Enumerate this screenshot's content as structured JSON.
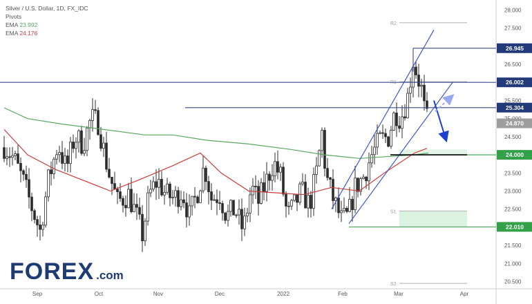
{
  "legend": {
    "symbol": "Silver / U.S. Dollar, 1D, FX_IDC",
    "pivots": "Pivots",
    "ema_fast_label": "EMA",
    "ema_fast_value": "23.992",
    "ema_slow_label": "EMA",
    "ema_slow_value": "24.176"
  },
  "logo": {
    "text": "FOREX",
    "suffix": ".com"
  },
  "colors": {
    "ema_fast": "#5aa860",
    "ema_slow": "#cc3a3a",
    "candle": "#2b2b2b",
    "channel": "#2f4cc9",
    "level": "#3a4a8a",
    "support": "#33a04a",
    "pivot_line": "#b0b0b0",
    "zone": "#d6f0dc",
    "arrow_solid": "#1f3fd0",
    "arrow_dashed": "#9aa8f0"
  },
  "chart_data": {
    "type": "candlestick",
    "title": "Silver / U.S. Dollar, 1D, FX_IDC",
    "y_range": [
      20.3,
      28.2
    ],
    "y_ticks": [
      "28.000",
      "27.500",
      "27.000",
      "26.500",
      "26.000",
      "25.500",
      "25.000",
      "24.500",
      "24.000",
      "23.500",
      "23.000",
      "22.500",
      "22.000",
      "21.500",
      "21.000",
      "20.500"
    ],
    "x_labels": [
      "Sep",
      "Oct",
      "Nov",
      "Dec",
      "2022",
      "Feb",
      "Mar",
      "Apr"
    ],
    "horizontal_levels": [
      {
        "label": "26.945",
        "value": 26.945
      },
      {
        "label": "26.002",
        "value": 26.002
      },
      {
        "label": "25.304",
        "value": 25.304
      },
      {
        "label": "24.000",
        "value": 24.0
      },
      {
        "label": "22.010",
        "value": 22.01
      }
    ],
    "last_price": {
      "label": "24.870",
      "value": 24.87
    },
    "pivots": [
      {
        "name": "R2",
        "value": 27.65
      },
      {
        "name": "R1",
        "value": 26.02
      },
      {
        "name": "S1",
        "value": 22.45
      },
      {
        "name": "S2",
        "value": 20.45
      }
    ],
    "ema_fast": {
      "name": "EMA",
      "last": 23.992
    },
    "ema_slow": {
      "name": "EMA",
      "last": 24.176
    },
    "projection": {
      "from": 24.8,
      "to": 24.1
    }
  }
}
